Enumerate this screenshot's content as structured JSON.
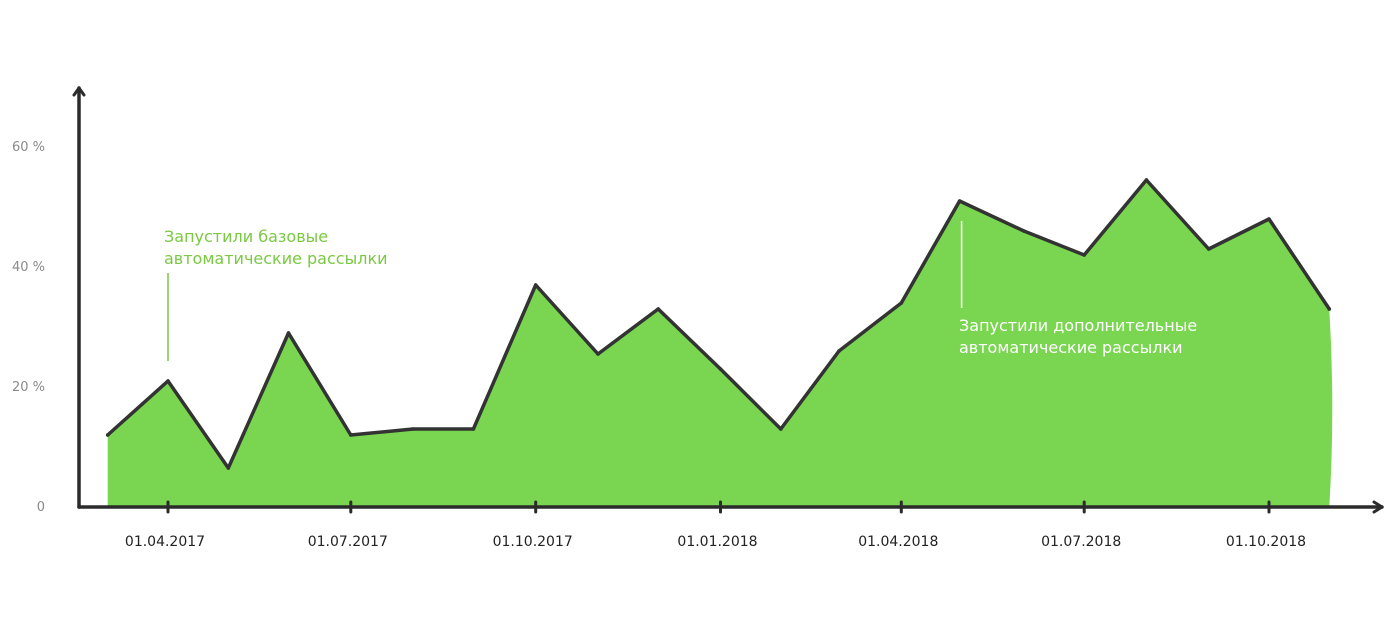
{
  "chart_data": {
    "type": "area",
    "y_ticks": [
      "0",
      "20 %",
      "40 %",
      "60 %"
    ],
    "y_tick_values": [
      0,
      20,
      40,
      60
    ],
    "x_ticks": [
      "01.04.2017",
      "01.07.2017",
      "01.10.2017",
      "01.01.2018",
      "01.04.2018",
      "01.07.2018",
      "01.10.2018"
    ],
    "x_tick_dates": [
      "2017-04-01",
      "2017-07-01",
      "2017-10-01",
      "2018-01-01",
      "2018-04-01",
      "2018-07-01",
      "2018-10-01"
    ],
    "ylim": [
      0,
      70
    ],
    "xlim": [
      "2017-01-01",
      "2018-12-31"
    ],
    "grid": false,
    "series": [
      {
        "points": [
          {
            "x": "2017-03-02",
            "y": 12
          },
          {
            "x": "2017-04-01",
            "y": 21
          },
          {
            "x": "2017-05-01",
            "y": 6.5
          },
          {
            "x": "2017-05-31",
            "y": 29
          },
          {
            "x": "2017-07-01",
            "y": 12
          },
          {
            "x": "2017-08-01",
            "y": 13
          },
          {
            "x": "2017-08-31",
            "y": 13
          },
          {
            "x": "2017-10-01",
            "y": 37
          },
          {
            "x": "2017-11-01",
            "y": 25.5
          },
          {
            "x": "2017-12-01",
            "y": 33
          },
          {
            "x": "2018-01-01",
            "y": 23
          },
          {
            "x": "2018-01-31",
            "y": 13
          },
          {
            "x": "2018-03-01",
            "y": 26
          },
          {
            "x": "2018-04-01",
            "y": 34
          },
          {
            "x": "2018-04-30",
            "y": 51
          },
          {
            "x": "2018-06-01",
            "y": 46
          },
          {
            "x": "2018-07-01",
            "y": 42
          },
          {
            "x": "2018-08-01",
            "y": 54.5
          },
          {
            "x": "2018-09-01",
            "y": 43
          },
          {
            "x": "2018-10-01",
            "y": 48
          },
          {
            "x": "2018-10-31",
            "y": 33
          }
        ]
      }
    ],
    "annotations": [
      {
        "text_lines": [
          "Запустили базовые",
          "автоматические рассылки"
        ],
        "date": "2017-04-01",
        "color": "#7ac943"
      },
      {
        "text_lines": [
          "Запустили дополнительные",
          "автоматические рассылки"
        ],
        "date": "2018-04-30",
        "color": "#ffffff"
      }
    ]
  },
  "colors": {
    "area_fill": "#7ad651",
    "line": "#333333",
    "axis": "#2b2b2b",
    "ytick_text": "#8a8a8a",
    "xtick_text": "#222222",
    "annotation_green": "#7ac943",
    "annotation_white": "#ffffff"
  }
}
